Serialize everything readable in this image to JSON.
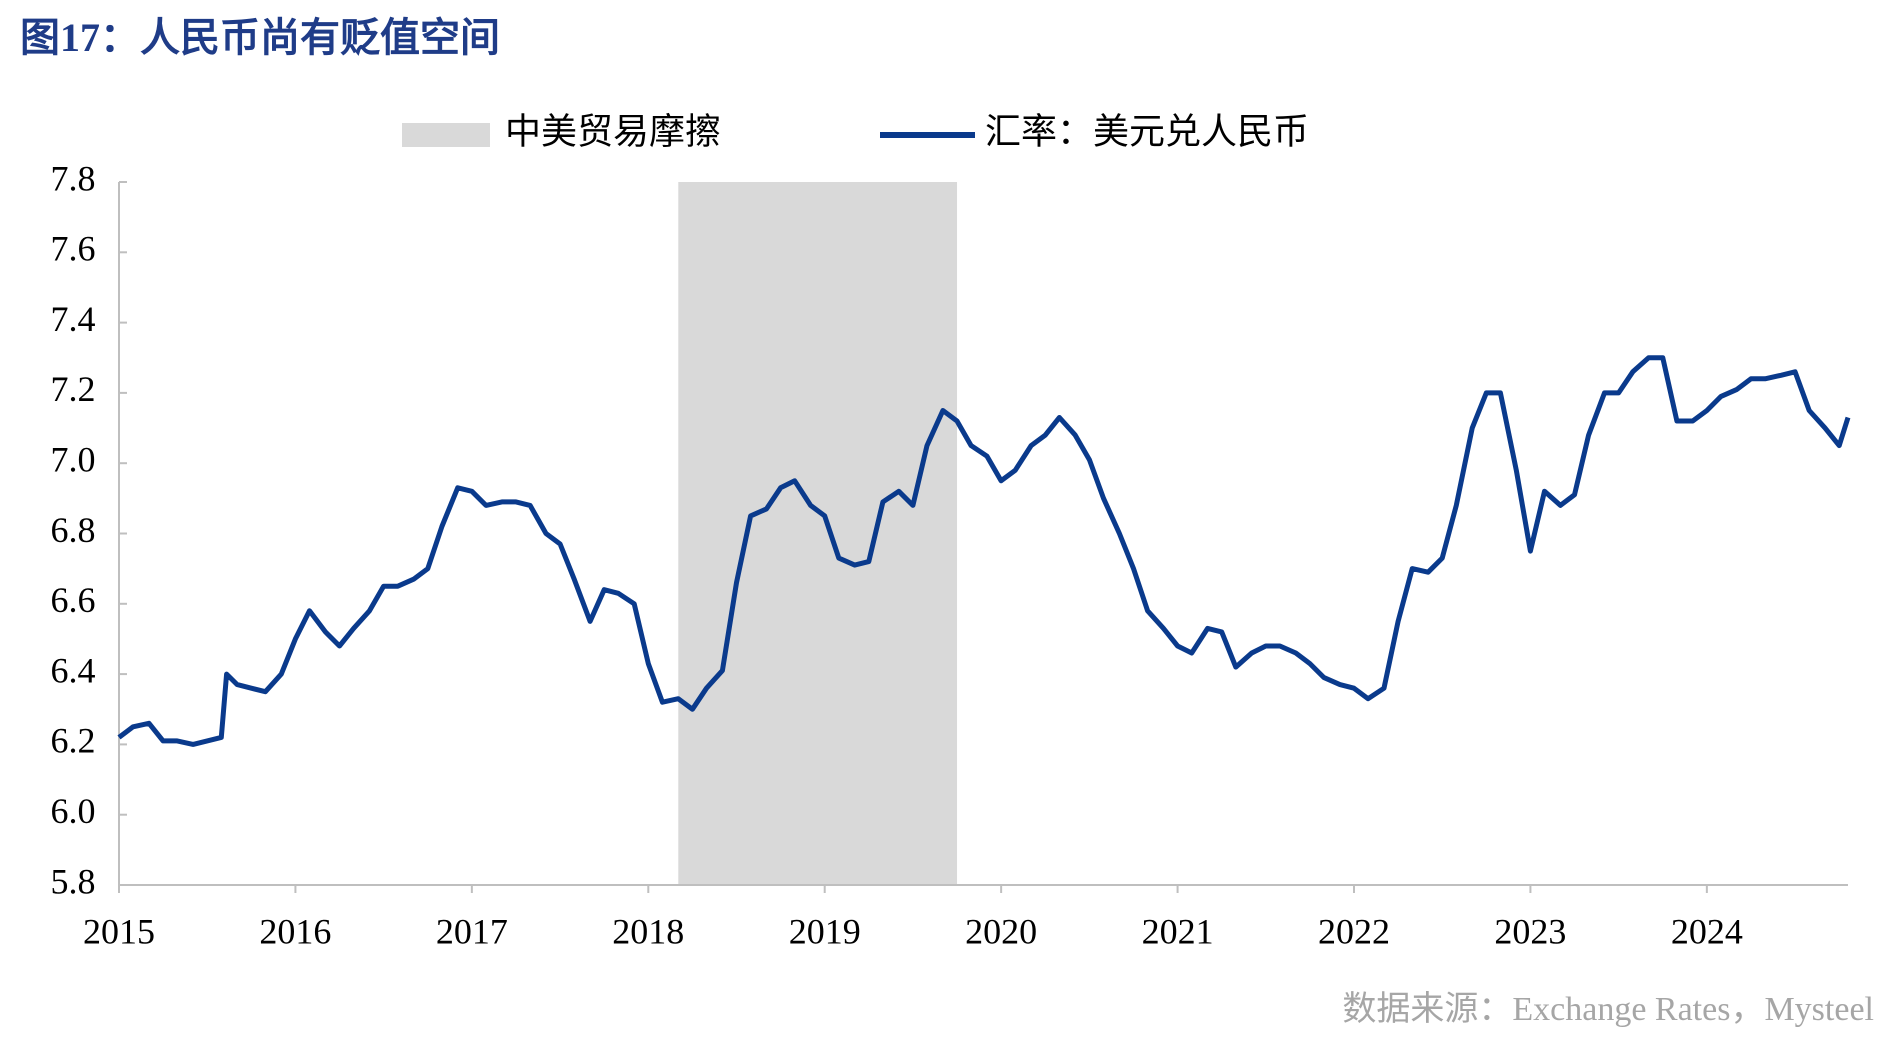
{
  "chart_data": {
    "type": "line",
    "title": "图17：人民币尚有贬值空间",
    "source": "数据来源：Exchange Rates，Mysteel",
    "shade": {
      "name": "中美贸易摩擦",
      "x": [
        2018.17,
        2019.75
      ],
      "color": "#d9d9d9"
    },
    "xlim": [
      2015,
      2024.8
    ],
    "xticks": [
      2015,
      2016,
      2017,
      2018,
      2019,
      2020,
      2021,
      2022,
      2023,
      2024
    ],
    "ylim": [
      5.8,
      7.8
    ],
    "yticks": [
      5.8,
      {
        "value": 6,
        "label": "6.0"
      },
      6.2,
      6.4,
      6.6,
      6.8,
      {
        "value": 7,
        "label": "7.0"
      },
      7.2,
      7.4,
      7.6,
      7.8
    ],
    "x": [
      2015.0,
      2015.08,
      2015.17,
      2015.25,
      2015.33,
      2015.42,
      2015.5,
      2015.58,
      2015.61,
      2015.67,
      2015.75,
      2015.83,
      2015.92,
      2016.0,
      2016.08,
      2016.17,
      2016.25,
      2016.33,
      2016.42,
      2016.5,
      2016.58,
      2016.67,
      2016.75,
      2016.83,
      2016.92,
      2017.0,
      2017.08,
      2017.17,
      2017.25,
      2017.33,
      2017.42,
      2017.5,
      2017.58,
      2017.67,
      2017.75,
      2017.83,
      2017.92,
      2018.0,
      2018.08,
      2018.17,
      2018.25,
      2018.33,
      2018.42,
      2018.5,
      2018.58,
      2018.67,
      2018.75,
      2018.83,
      2018.92,
      2019.0,
      2019.08,
      2019.17,
      2019.25,
      2019.33,
      2019.42,
      2019.5,
      2019.58,
      2019.67,
      2019.75,
      2019.83,
      2019.92,
      2020.0,
      2020.08,
      2020.17,
      2020.25,
      2020.33,
      2020.42,
      2020.5,
      2020.58,
      2020.67,
      2020.75,
      2020.83,
      2020.92,
      2021.0,
      2021.08,
      2021.17,
      2021.25,
      2021.33,
      2021.42,
      2021.5,
      2021.58,
      2021.67,
      2021.75,
      2021.83,
      2021.92,
      2022.0,
      2022.08,
      2022.17,
      2022.25,
      2022.33,
      2022.42,
      2022.5,
      2022.58,
      2022.67,
      2022.75,
      2022.83,
      2022.92,
      2023.0,
      2023.08,
      2023.17,
      2023.25,
      2023.33,
      2023.42,
      2023.5,
      2023.58,
      2023.67,
      2023.75,
      2023.83,
      2023.92,
      2024.0,
      2024.08,
      2024.17,
      2024.25,
      2024.33,
      2024.42,
      2024.5,
      2024.58,
      2024.67,
      2024.75,
      2024.8
    ],
    "series": [
      {
        "name": "汇率：美元兑人民币",
        "color": "#0a3a8c",
        "values": [
          6.22,
          6.25,
          6.26,
          6.21,
          6.21,
          6.2,
          6.21,
          6.22,
          6.4,
          6.37,
          6.36,
          6.35,
          6.4,
          6.5,
          6.58,
          6.52,
          6.48,
          6.53,
          6.58,
          6.65,
          6.65,
          6.67,
          6.7,
          6.82,
          6.93,
          6.92,
          6.88,
          6.89,
          6.89,
          6.88,
          6.8,
          6.77,
          6.67,
          6.55,
          6.64,
          6.63,
          6.6,
          6.43,
          6.32,
          6.33,
          6.3,
          6.36,
          6.41,
          6.66,
          6.85,
          6.87,
          6.93,
          6.95,
          6.88,
          6.85,
          6.73,
          6.71,
          6.72,
          6.89,
          6.92,
          6.88,
          7.05,
          7.15,
          7.12,
          7.05,
          7.02,
          6.95,
          6.98,
          7.05,
          7.08,
          7.13,
          7.08,
          7.01,
          6.9,
          6.8,
          6.7,
          6.58,
          6.53,
          6.48,
          6.46,
          6.53,
          6.52,
          6.42,
          6.46,
          6.48,
          6.48,
          6.46,
          6.43,
          6.39,
          6.37,
          6.36,
          6.33,
          6.36,
          6.55,
          6.7,
          6.69,
          6.73,
          6.88,
          7.1,
          7.2,
          7.2,
          6.98,
          6.75,
          6.92,
          6.88,
          6.91,
          7.08,
          7.2,
          7.2,
          7.26,
          7.3,
          7.3,
          7.12,
          7.12,
          7.15,
          7.19,
          7.21,
          7.24,
          7.24,
          7.25,
          7.26,
          7.15,
          7.1,
          7.05,
          7.13
        ]
      }
    ]
  }
}
